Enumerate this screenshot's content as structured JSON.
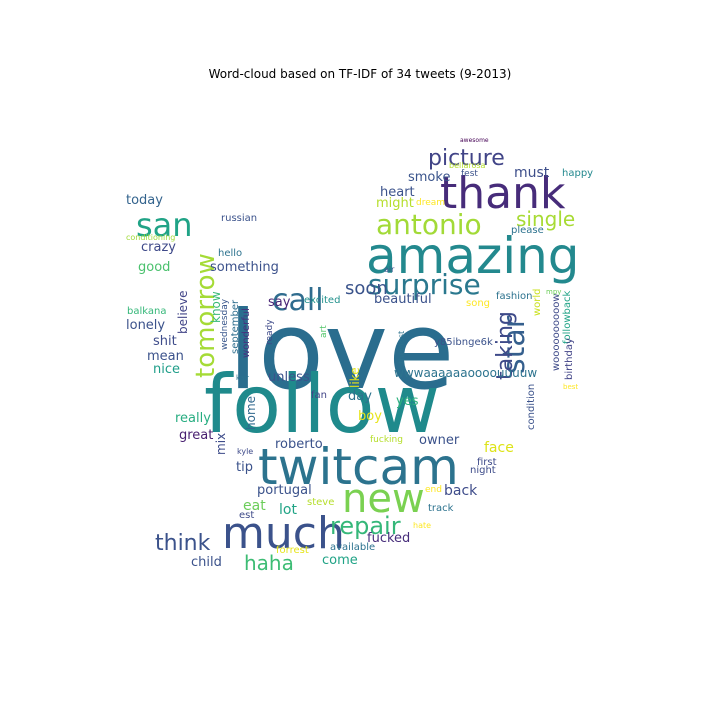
{
  "figure": {
    "title": "Word-cloud based on TF-IDF of 34 tweets (9-2013)"
  },
  "words": [
    {
      "text": "love",
      "color": "#2a6d8e"
    },
    {
      "text": "follow",
      "color": "#1f8a8c"
    },
    {
      "text": "amazing",
      "color": "#23898e"
    },
    {
      "text": "thank",
      "color": "#472c7a"
    },
    {
      "text": "twitcam",
      "color": "#2c738e"
    },
    {
      "text": "much",
      "color": "#3b528b"
    },
    {
      "text": "new",
      "color": "#7ad151"
    },
    {
      "text": "surprise",
      "color": "#2a788e"
    },
    {
      "text": "call",
      "color": "#2f6c8e"
    },
    {
      "text": "san",
      "color": "#20a386"
    },
    {
      "text": "antonio",
      "color": "#a2da37"
    },
    {
      "text": "tomorrow",
      "color": "#a5db36"
    },
    {
      "text": "repair",
      "color": "#35b779"
    },
    {
      "text": "picture",
      "color": "#414487"
    },
    {
      "text": "star",
      "color": "#355f8d"
    },
    {
      "text": "taking",
      "color": "#3e4a89"
    },
    {
      "text": "single",
      "color": "#a8db34"
    },
    {
      "text": "think",
      "color": "#3b528b"
    },
    {
      "text": "haha",
      "color": "#3dbc74"
    },
    {
      "text": "soon",
      "color": "#3a538b"
    },
    {
      "text": "smoke",
      "color": "#3a548c"
    },
    {
      "text": "must",
      "color": "#3d4e8a"
    },
    {
      "text": "heart",
      "color": "#3b528b"
    },
    {
      "text": "might",
      "color": "#b5de2b"
    },
    {
      "text": "today",
      "color": "#33638d"
    },
    {
      "text": "crazy",
      "color": "#3e4989"
    },
    {
      "text": "good",
      "color": "#4ac16d"
    },
    {
      "text": "hello",
      "color": "#2c728e"
    },
    {
      "text": "something",
      "color": "#3b518b"
    },
    {
      "text": "say",
      "color": "#482576"
    },
    {
      "text": "believe",
      "color": "#414487"
    },
    {
      "text": "know",
      "color": "#38b977"
    },
    {
      "text": "lonely",
      "color": "#3b528b"
    },
    {
      "text": "shit",
      "color": "#3e4c8a"
    },
    {
      "text": "mean",
      "color": "#3b528b"
    },
    {
      "text": "nice",
      "color": "#1f9e89"
    },
    {
      "text": "really",
      "color": "#27ad81"
    },
    {
      "text": "great",
      "color": "#481f70"
    },
    {
      "text": "mix",
      "color": "#3e4c8a"
    },
    {
      "text": "tip",
      "color": "#3b528b"
    },
    {
      "text": "home",
      "color": "#31688e"
    },
    {
      "text": "unless",
      "color": "#3b528b"
    },
    {
      "text": "beautiful",
      "color": "#3b528b"
    },
    {
      "text": "excited",
      "color": "#21918c"
    },
    {
      "text": "ready",
      "color": "#3e4a89"
    },
    {
      "text": "wonderful",
      "color": "#46327e"
    },
    {
      "text": "september",
      "color": "#2e6e8e"
    },
    {
      "text": "wednesday",
      "color": "#39568c"
    },
    {
      "text": "balkana",
      "color": "#35b779"
    },
    {
      "text": "russian",
      "color": "#3b528b"
    },
    {
      "text": "conditioning",
      "color": "#a0da39"
    },
    {
      "text": "wwwaaaaaaoooouuuuw",
      "color": "#2c738e"
    },
    {
      "text": "like",
      "color": "#e4e419"
    },
    {
      "text": "day",
      "color": "#2c728e"
    },
    {
      "text": "boy",
      "color": "#e7e419"
    },
    {
      "text": "yes",
      "color": "#2db27d"
    },
    {
      "text": "roberto",
      "color": "#3b528b"
    },
    {
      "text": "owner",
      "color": "#3b528b"
    },
    {
      "text": "face",
      "color": "#dde318"
    },
    {
      "text": "portugal",
      "color": "#3b528b"
    },
    {
      "text": "lot",
      "color": "#20a486"
    },
    {
      "text": "eat",
      "color": "#6ccd5a"
    },
    {
      "text": "back",
      "color": "#3e4c8a"
    },
    {
      "text": "fucked",
      "color": "#472d7b"
    },
    {
      "text": "child",
      "color": "#3b528b"
    },
    {
      "text": "come",
      "color": "#20a386"
    },
    {
      "text": "available",
      "color": "#2c728e"
    },
    {
      "text": "forrest",
      "color": "#e5e419"
    },
    {
      "text": "steve",
      "color": "#b5de2b"
    },
    {
      "text": "est",
      "color": "#3e4a89"
    },
    {
      "text": "track",
      "color": "#2c728e"
    },
    {
      "text": "hate",
      "color": "#fde725"
    },
    {
      "text": "end",
      "color": "#fde725"
    },
    {
      "text": "fucking",
      "color": "#b5de2b"
    },
    {
      "text": "first",
      "color": "#3e4a89"
    },
    {
      "text": "night",
      "color": "#3e4c8a"
    },
    {
      "text": "kyle",
      "color": "#3e4a89"
    },
    {
      "text": "fan",
      "color": "#414487"
    },
    {
      "text": "kair",
      "color": "#2c728e"
    },
    {
      "text": "themost",
      "color": "#2c728e"
    },
    {
      "text": "art",
      "color": "#52c569"
    },
    {
      "text": "song",
      "color": "#fde725"
    },
    {
      "text": "fashion",
      "color": "#2c728e"
    },
    {
      "text": "world",
      "color": "#cae11f"
    },
    {
      "text": "followback",
      "color": "#20a386"
    },
    {
      "text": "birthday",
      "color": "#414487"
    },
    {
      "text": "condition",
      "color": "#3b528b"
    },
    {
      "text": "woooooooooow",
      "color": "#3e4a89"
    },
    {
      "text": "y85ibnge6k",
      "color": "#3b528b"
    },
    {
      "text": "air",
      "color": "#3b528b"
    },
    {
      "text": "please",
      "color": "#2c728e"
    },
    {
      "text": "dream",
      "color": "#fde725"
    },
    {
      "text": "happy",
      "color": "#23888e"
    },
    {
      "text": "fest",
      "color": "#3b528b"
    },
    {
      "text": "bellarosa",
      "color": "#b5de2b"
    },
    {
      "text": "awesome",
      "color": "#440154"
    },
    {
      "text": "best",
      "color": "#fde725"
    },
    {
      "text": "mpy",
      "color": "#6ccd5a"
    }
  ]
}
